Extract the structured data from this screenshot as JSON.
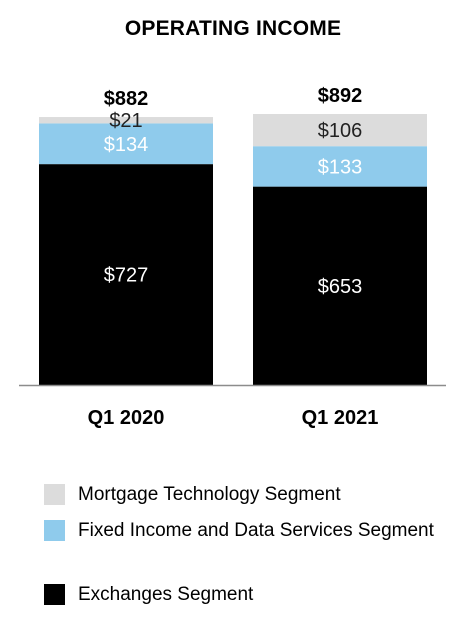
{
  "chart_data": {
    "type": "bar",
    "stacked": true,
    "title": "OPERATING INCOME",
    "categories": [
      "Q1 2020",
      "Q1 2021"
    ],
    "totals": [
      "$882",
      "$892"
    ],
    "series": [
      {
        "name": "Exchanges Segment",
        "values": [
          727,
          653
        ],
        "labels": [
          "$727",
          "$653"
        ],
        "color": "#000000",
        "label_color": "#ffffff"
      },
      {
        "name": "Fixed Income and Data Services Segment",
        "values": [
          134,
          133
        ],
        "labels": [
          "$134",
          "$133"
        ],
        "color": "#8fcbec",
        "label_color": "#ffffff"
      },
      {
        "name": "Mortgage Technology Segment",
        "values": [
          21,
          106
        ],
        "labels": [
          "$21",
          "$106"
        ],
        "color": "#dcdcdc",
        "label_color": "#222222"
      }
    ],
    "ylim": [
      0,
      892
    ],
    "grid": false,
    "legend_position": "bottom"
  },
  "legend": {
    "items": [
      {
        "label": "Mortgage Technology Segment",
        "color": "#dcdcdc"
      },
      {
        "label": "Fixed Income and Data Services Segment",
        "color": "#8fcbec"
      },
      {
        "label": "Exchanges Segment",
        "color": "#000000"
      }
    ]
  }
}
